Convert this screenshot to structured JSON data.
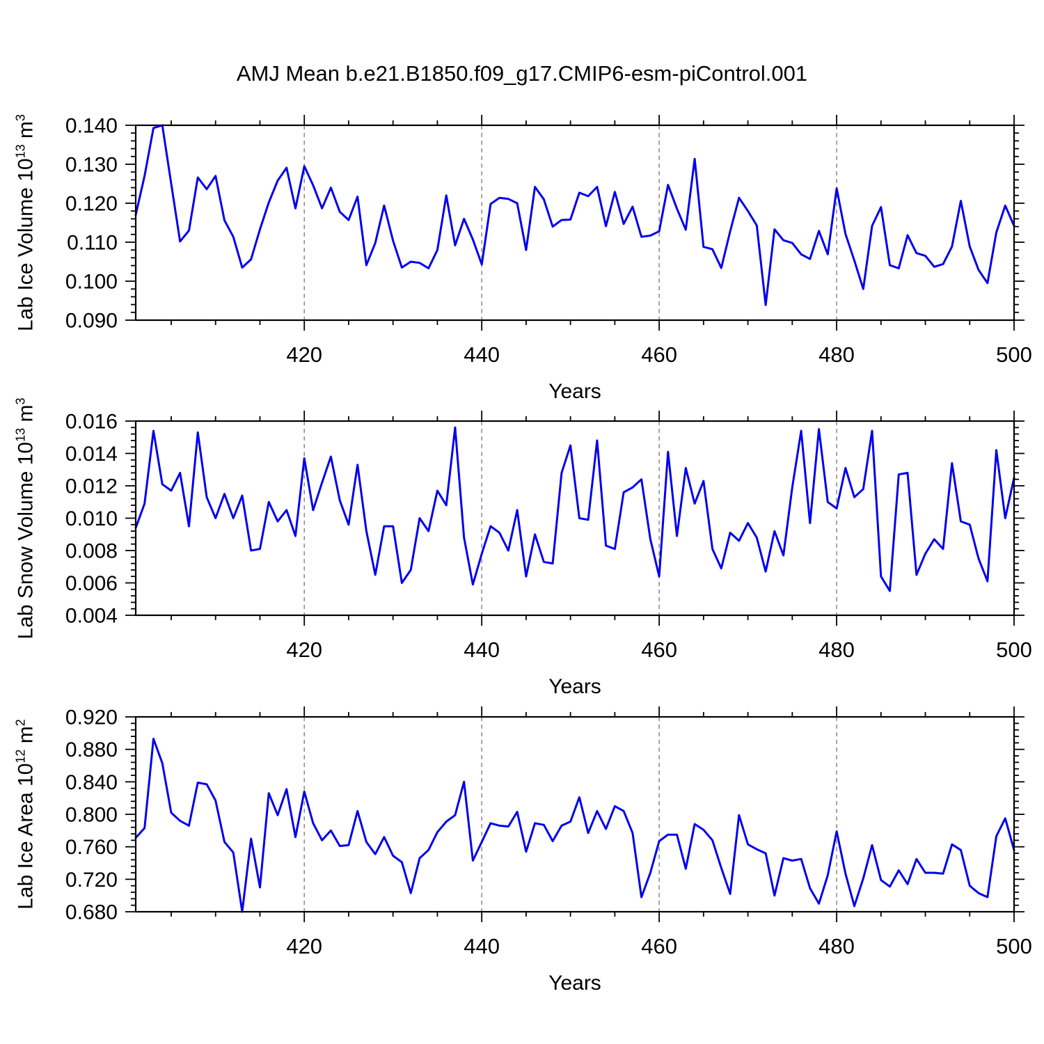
{
  "title": "AMJ Mean b.e21.B1850.f09_g17.CMIP6-esm-piControl.001",
  "colors": {
    "line": "#0000ee",
    "grid": "#808080",
    "frame": "#000000",
    "text": "#000000"
  },
  "chart_data": [
    {
      "type": "line",
      "name": "lab-ice-volume",
      "ylabel": "Lab Ice Volume 10^13^ m^3^",
      "xlabel": "Years",
      "x_range": [
        401,
        500
      ],
      "x_start": 401,
      "x_tick_values": [
        420,
        440,
        460,
        480,
        500
      ],
      "x_tick_labels": [
        "420",
        "440",
        "460",
        "480",
        "500"
      ],
      "x_minor_step": 5,
      "grid_x": [
        420,
        440,
        460,
        480
      ],
      "y_range": [
        0.09,
        0.14
      ],
      "y_tick_values": [
        0.09,
        0.1,
        0.11,
        0.12,
        0.13,
        0.14
      ],
      "y_tick_labels": [
        "0.090",
        "0.100",
        "0.110",
        "0.120",
        "0.130",
        "0.140"
      ],
      "y_minor_step": 0.002,
      "values": [
        0.117,
        0.127,
        0.1393,
        0.14,
        0.125,
        0.1102,
        0.113,
        0.1266,
        0.1236,
        0.127,
        0.1156,
        0.1114,
        0.1035,
        0.1056,
        0.1133,
        0.1202,
        0.1258,
        0.1291,
        0.1187,
        0.1295,
        0.1246,
        0.1187,
        0.124,
        0.1178,
        0.1157,
        0.1217,
        0.1041,
        0.1098,
        0.1194,
        0.1104,
        0.1035,
        0.105,
        0.1047,
        0.1033,
        0.108,
        0.122,
        0.1092,
        0.116,
        0.1107,
        0.1043,
        0.1198,
        0.1214,
        0.1211,
        0.12,
        0.108,
        0.1242,
        0.121,
        0.114,
        0.1157,
        0.1158,
        0.1227,
        0.1218,
        0.1242,
        0.1141,
        0.1229,
        0.1147,
        0.1191,
        0.1114,
        0.1117,
        0.1128,
        0.1247,
        0.1186,
        0.1132,
        0.1314,
        0.1088,
        0.1082,
        0.1034,
        0.1128,
        0.1214,
        0.118,
        0.1143,
        0.0939,
        0.1133,
        0.1105,
        0.1098,
        0.1069,
        0.1057,
        0.1129,
        0.1069,
        0.1238,
        0.1121,
        0.1053,
        0.098,
        0.1142,
        0.119,
        0.1041,
        0.1033,
        0.1118,
        0.1072,
        0.1065,
        0.1037,
        0.1044,
        0.1089,
        0.1206,
        0.1089,
        0.1029,
        0.0995,
        0.1125,
        0.1194,
        0.1142
      ]
    },
    {
      "type": "line",
      "name": "lab-snow-volume",
      "ylabel": "Lab Snow Volume 10^13^ m^3^",
      "xlabel": "Years",
      "x_range": [
        401,
        500
      ],
      "x_start": 401,
      "x_tick_values": [
        420,
        440,
        460,
        480,
        500
      ],
      "x_tick_labels": [
        "420",
        "440",
        "460",
        "480",
        "500"
      ],
      "x_minor_step": 5,
      "grid_x": [
        420,
        440,
        460,
        480
      ],
      "y_range": [
        0.004,
        0.016
      ],
      "y_tick_values": [
        0.004,
        0.006,
        0.008,
        0.01,
        0.012,
        0.014,
        0.016
      ],
      "y_tick_labels": [
        "0.004",
        "0.006",
        "0.008",
        "0.010",
        "0.012",
        "0.014",
        "0.016"
      ],
      "y_minor_step": 0.0004,
      "values": [
        0.0094,
        0.0109,
        0.0154,
        0.0121,
        0.0117,
        0.0128,
        0.0095,
        0.0153,
        0.0113,
        0.01,
        0.0115,
        0.01,
        0.0114,
        0.008,
        0.0081,
        0.011,
        0.0098,
        0.0105,
        0.0089,
        0.0137,
        0.0105,
        0.0122,
        0.0138,
        0.0111,
        0.0096,
        0.0133,
        0.0092,
        0.0065,
        0.0095,
        0.0095,
        0.006,
        0.0068,
        0.01,
        0.0092,
        0.0117,
        0.0108,
        0.0156,
        0.0088,
        0.0059,
        0.0078,
        0.0095,
        0.0091,
        0.008,
        0.0105,
        0.0064,
        0.009,
        0.0073,
        0.0072,
        0.0128,
        0.0145,
        0.01,
        0.0099,
        0.0148,
        0.0083,
        0.0081,
        0.0116,
        0.0119,
        0.0124,
        0.0087,
        0.0064,
        0.0141,
        0.0089,
        0.0131,
        0.0109,
        0.0123,
        0.0081,
        0.0069,
        0.0091,
        0.0086,
        0.0097,
        0.0088,
        0.0067,
        0.0092,
        0.0077,
        0.0119,
        0.0154,
        0.0097,
        0.0155,
        0.011,
        0.0106,
        0.0131,
        0.0113,
        0.0118,
        0.0154,
        0.0064,
        0.0055,
        0.0127,
        0.0128,
        0.0065,
        0.0078,
        0.0087,
        0.0081,
        0.0134,
        0.0098,
        0.0096,
        0.0075,
        0.0061,
        0.0142,
        0.01,
        0.0125
      ]
    },
    {
      "type": "line",
      "name": "lab-ice-area",
      "ylabel": "Lab Ice Area 10^12^ m^2^",
      "xlabel": "Years",
      "x_range": [
        401,
        500
      ],
      "x_start": 401,
      "x_tick_values": [
        420,
        440,
        460,
        480,
        500
      ],
      "x_tick_labels": [
        "420",
        "440",
        "460",
        "480",
        "500"
      ],
      "x_minor_step": 5,
      "grid_x": [
        420,
        440,
        460,
        480
      ],
      "y_range": [
        0.68,
        0.92
      ],
      "y_tick_values": [
        0.68,
        0.72,
        0.76,
        0.8,
        0.84,
        0.88,
        0.92
      ],
      "y_tick_labels": [
        "0.680",
        "0.720",
        "0.760",
        "0.800",
        "0.840",
        "0.880",
        "0.920"
      ],
      "y_minor_step": 0.008,
      "values": [
        0.771,
        0.783,
        0.893,
        0.863,
        0.802,
        0.792,
        0.786,
        0.839,
        0.837,
        0.817,
        0.766,
        0.753,
        0.68,
        0.77,
        0.71,
        0.826,
        0.799,
        0.831,
        0.772,
        0.828,
        0.789,
        0.768,
        0.78,
        0.761,
        0.762,
        0.804,
        0.766,
        0.751,
        0.772,
        0.749,
        0.741,
        0.703,
        0.746,
        0.756,
        0.778,
        0.791,
        0.799,
        0.84,
        0.743,
        0.766,
        0.789,
        0.786,
        0.785,
        0.803,
        0.754,
        0.789,
        0.787,
        0.767,
        0.786,
        0.791,
        0.821,
        0.777,
        0.804,
        0.782,
        0.81,
        0.804,
        0.777,
        0.698,
        0.728,
        0.767,
        0.775,
        0.775,
        0.733,
        0.788,
        0.781,
        0.768,
        0.734,
        0.702,
        0.799,
        0.763,
        0.757,
        0.752,
        0.7,
        0.746,
        0.743,
        0.745,
        0.709,
        0.69,
        0.725,
        0.779,
        0.727,
        0.687,
        0.721,
        0.762,
        0.719,
        0.711,
        0.731,
        0.714,
        0.745,
        0.728,
        0.728,
        0.727,
        0.763,
        0.756,
        0.712,
        0.703,
        0.698,
        0.773,
        0.795,
        0.756
      ]
    }
  ]
}
